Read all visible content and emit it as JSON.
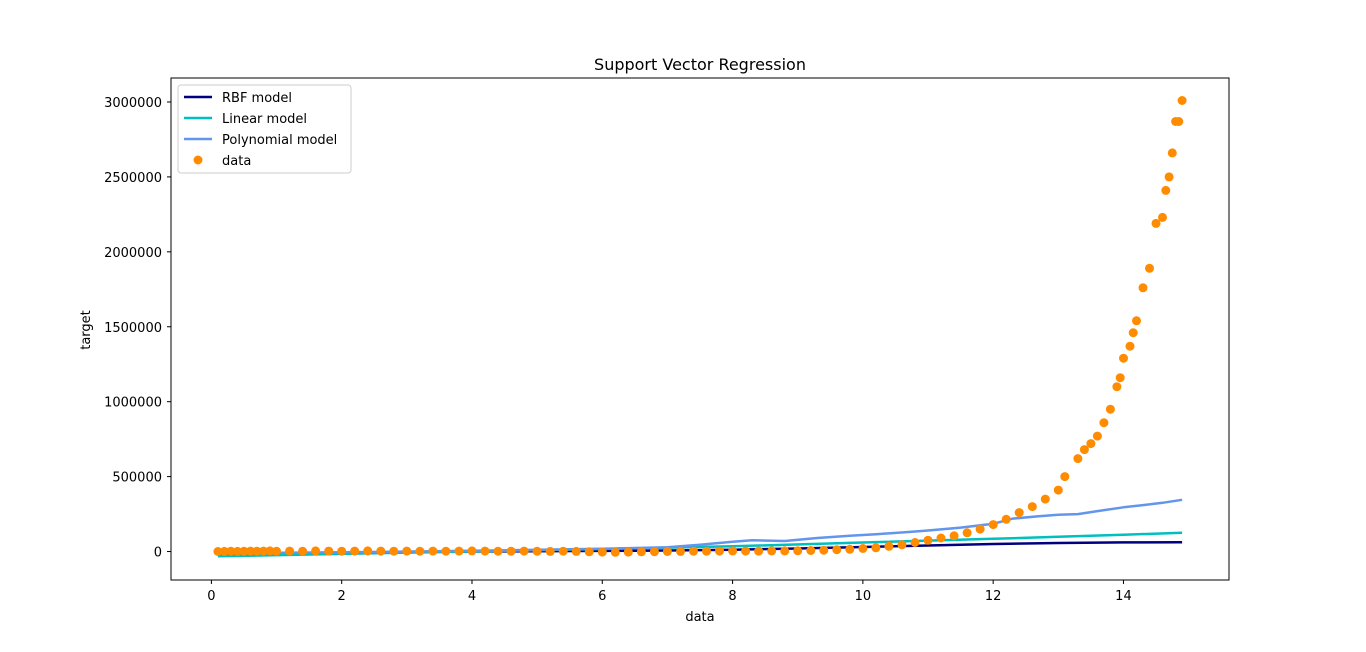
{
  "chart_data": {
    "type": "scatter",
    "title": "Support Vector Regression",
    "xlabel": "data",
    "ylabel": "target",
    "xlim": [
      -0.62,
      15.62
    ],
    "ylim": [
      -190000,
      3160000
    ],
    "xticks": [
      0,
      2,
      4,
      6,
      8,
      10,
      12,
      14
    ],
    "xtick_labels": [
      "0",
      "2",
      "4",
      "6",
      "8",
      "10",
      "12",
      "14"
    ],
    "yticks": [
      0,
      500000,
      1000000,
      1500000,
      2000000,
      2500000,
      3000000
    ],
    "ytick_labels": [
      "0",
      "500000",
      "1000000",
      "1500000",
      "2000000",
      "2500000",
      "3000000"
    ],
    "grid": false,
    "legend_position": "top-left",
    "series": [
      {
        "name": "RBF model",
        "kind": "line",
        "color": "#000080",
        "x": [
          0.1,
          2,
          4,
          6,
          7,
          8,
          9,
          10,
          11,
          12,
          13,
          14,
          14.9
        ],
        "y": [
          -15000,
          -8000,
          0,
          4000,
          7000,
          12000,
          20000,
          30000,
          40000,
          50000,
          57000,
          61000,
          62000
        ]
      },
      {
        "name": "Linear model",
        "kind": "line",
        "color": "#00bfbf",
        "x": [
          0.1,
          2,
          4,
          6,
          8,
          10,
          12,
          13,
          14,
          14.9
        ],
        "y": [
          -32000,
          -16000,
          0,
          17000,
          35000,
          60000,
          85000,
          98000,
          112000,
          125000
        ]
      },
      {
        "name": "Polynomial model",
        "kind": "line",
        "color": "#6495ed",
        "x": [
          0.1,
          2,
          4,
          6,
          7,
          7.5,
          8,
          8.3,
          8.8,
          9.3,
          9.8,
          10.2,
          10.7,
          11,
          11.5,
          12,
          12.3,
          12.7,
          13,
          13.3,
          13.6,
          14,
          14.3,
          14.6,
          14.9
        ],
        "y": [
          -12000,
          -5000,
          5000,
          18000,
          28000,
          45000,
          65000,
          75000,
          70000,
          90000,
          105000,
          115000,
          130000,
          140000,
          160000,
          185000,
          220000,
          235000,
          245000,
          250000,
          270000,
          295000,
          310000,
          325000,
          345000
        ]
      },
      {
        "name": "data",
        "kind": "scatter",
        "color": "#ff8c00",
        "x": [
          0.1,
          0.2,
          0.3,
          0.4,
          0.5,
          0.6,
          0.7,
          0.8,
          0.9,
          1.0,
          1.2,
          1.4,
          1.6,
          1.8,
          2.0,
          2.2,
          2.4,
          2.6,
          2.8,
          3.0,
          3.2,
          3.4,
          3.6,
          3.8,
          4.0,
          4.2,
          4.4,
          4.6,
          4.8,
          5.0,
          5.2,
          5.4,
          5.6,
          5.8,
          6.0,
          6.2,
          6.4,
          6.6,
          6.8,
          7.0,
          7.2,
          7.4,
          7.6,
          7.8,
          8.0,
          8.2,
          8.4,
          8.6,
          8.8,
          9.0,
          9.2,
          9.4,
          9.6,
          9.8,
          10.0,
          10.2,
          10.4,
          10.6,
          10.8,
          11.0,
          11.2,
          11.4,
          11.6,
          11.8,
          12.0,
          12.2,
          12.4,
          12.6,
          12.8,
          13.0,
          13.1,
          13.3,
          13.4,
          13.5,
          13.6,
          13.7,
          13.8,
          13.9,
          13.95,
          14.0,
          14.1,
          14.15,
          14.2,
          14.3,
          14.4,
          14.5,
          14.6,
          14.65,
          14.7,
          14.75,
          14.8,
          14.85,
          14.9
        ],
        "y": [
          0,
          1000,
          2000,
          1000,
          2000,
          3000,
          2000,
          3000,
          4000,
          2000,
          3000,
          2000,
          4000,
          3000,
          2000,
          3000,
          4000,
          3000,
          2000,
          3000,
          2000,
          3000,
          2000,
          3000,
          4000,
          3000,
          2000,
          2000,
          3000,
          2000,
          1000,
          2000,
          1000,
          -2000,
          -4000,
          -5000,
          -4000,
          -2000,
          -1000,
          0,
          1000,
          2000,
          2000,
          3000,
          4000,
          3000,
          3000,
          4000,
          4000,
          5000,
          7000,
          9000,
          12000,
          15000,
          20000,
          25000,
          35000,
          45000,
          60000,
          75000,
          90000,
          105000,
          125000,
          150000,
          180000,
          215000,
          260000,
          300000,
          350000,
          410000,
          500000,
          620000,
          680000,
          720000,
          770000,
          860000,
          950000,
          1100000,
          1160000,
          1290000,
          1370000,
          1460000,
          1540000,
          1760000,
          1890000,
          2190000,
          2230000,
          2410000,
          2500000,
          2660000,
          2870000,
          2870000,
          3010000
        ]
      }
    ]
  }
}
